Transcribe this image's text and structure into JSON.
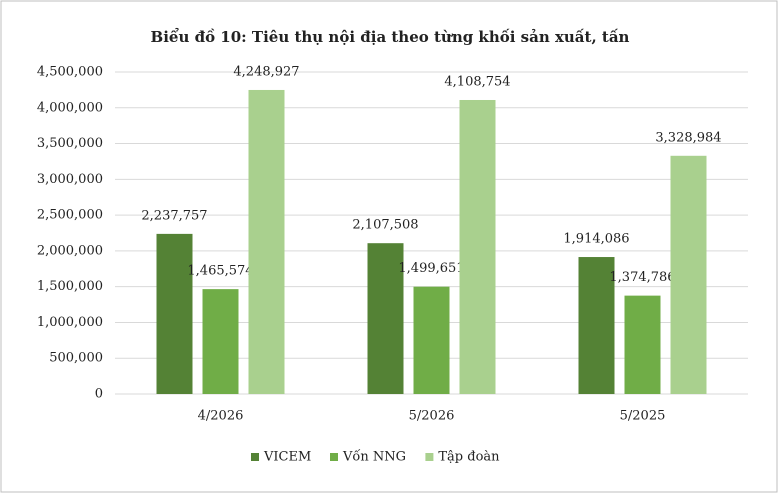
{
  "chart_data": {
    "type": "bar",
    "title": "Biểu đồ 10: Tiêu thụ nội địa theo từng khối sản xuất, tấn",
    "categories": [
      "4/2026",
      "5/2026",
      "5/2025"
    ],
    "series": [
      {
        "name": "VICEM",
        "color": "#548235",
        "values": [
          2237757,
          2107508,
          1914086
        ],
        "value_labels": [
          "2,237,757",
          "2,107,508",
          "1,914,086"
        ]
      },
      {
        "name": "Vốn NNG",
        "color": "#70ad47",
        "values": [
          1465574,
          1499651,
          1374786
        ],
        "value_labels": [
          "1,465,574",
          "1,499,651",
          "1,374,786"
        ]
      },
      {
        "name": "Tập đoàn",
        "color": "#a9d08e",
        "values": [
          4248927,
          4108754,
          3328984
        ],
        "value_labels": [
          "4,248,927",
          "4,108,754",
          "3,328,984"
        ]
      }
    ],
    "ylim": [
      0,
      4500000
    ],
    "yticks": [
      0,
      {
        "value": 500000,
        "label": "500,000"
      },
      {
        "value": 1000000,
        "label": "1,000,000"
      },
      {
        "value": 1500000,
        "label": "1,500,000"
      },
      {
        "value": 2000000,
        "label": "2,000,000"
      },
      {
        "value": 2500000,
        "label": "2,500,000"
      },
      {
        "value": 3000000,
        "label": "3,000,000"
      },
      {
        "value": 3500000,
        "label": "3,500,000"
      },
      {
        "value": 4000000,
        "label": "4,000,000"
      },
      {
        "value": 4500000,
        "label": "4,500,000"
      }
    ],
    "grid": true,
    "legend": "bottom"
  }
}
